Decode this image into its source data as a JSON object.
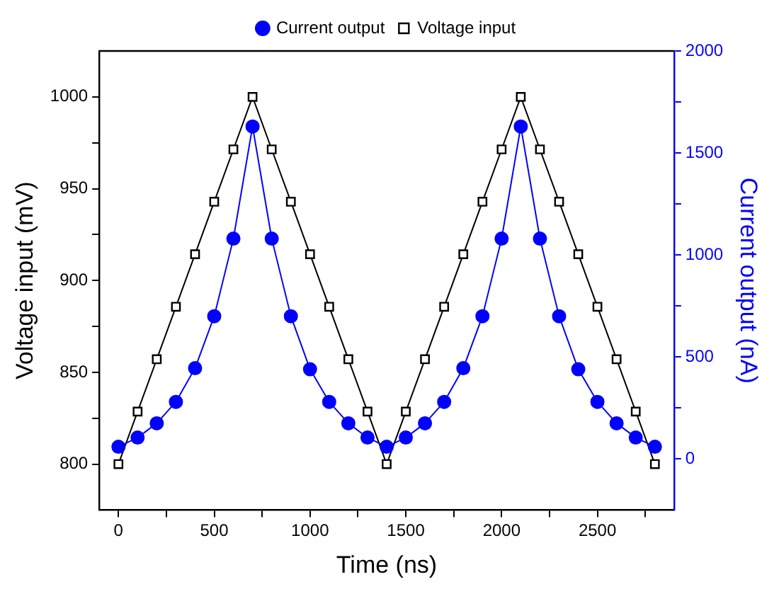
{
  "chart_data": {
    "type": "line",
    "xlabel": "Time (ns)",
    "ylabel": "Voltage input (mV)",
    "y2label": "Current output (nA)",
    "x": [
      0,
      100,
      200,
      300,
      400,
      500,
      600,
      700,
      800,
      900,
      1000,
      1100,
      1200,
      1300,
      1400,
      1500,
      1600,
      1700,
      1800,
      1900,
      2000,
      2100,
      2200,
      2300,
      2400,
      2500,
      2600,
      2700,
      2800
    ],
    "series": [
      {
        "name": "Current output",
        "color": "#0000ff",
        "axis": "y2",
        "marker": "circle",
        "values": [
          60,
          105,
          175,
          280,
          445,
          700,
          1080,
          1630,
          1080,
          700,
          440,
          280,
          175,
          105,
          60,
          105,
          175,
          280,
          445,
          700,
          1080,
          1630,
          1080,
          700,
          440,
          280,
          175,
          105,
          60
        ]
      },
      {
        "name": "Voltage input",
        "color": "#000000",
        "axis": "y",
        "marker": "square",
        "values": [
          800,
          828.6,
          857.1,
          885.7,
          914.3,
          942.9,
          971.4,
          1000,
          971.4,
          942.9,
          914.3,
          885.7,
          857.1,
          828.6,
          800,
          828.6,
          857.1,
          885.7,
          914.3,
          942.9,
          971.4,
          1000,
          971.4,
          942.9,
          914.3,
          885.7,
          857.1,
          828.6,
          800
        ]
      }
    ],
    "xlim": [
      -100,
      2900
    ],
    "xticks": [
      0,
      {
        "value": 250,
        "label": null
      },
      500,
      {
        "value": 750,
        "label": null
      },
      1000,
      {
        "value": 1250,
        "label": null
      },
      1500,
      {
        "value": 1750,
        "label": null
      },
      2000,
      {
        "value": 2250,
        "label": null
      },
      2500,
      {
        "value": 2750,
        "label": null
      }
    ],
    "ylim": [
      775,
      1025
    ],
    "yticks": [
      800,
      {
        "value": 825,
        "label": null
      },
      850,
      {
        "value": 875,
        "label": null
      },
      900,
      {
        "value": 925,
        "label": null
      },
      950,
      {
        "value": 975,
        "label": null
      },
      1000
    ],
    "y2lim": [
      -250,
      2000
    ],
    "y2ticks": [
      0,
      {
        "value": 250,
        "label": null
      },
      500,
      {
        "value": 750,
        "label": null
      },
      1000,
      {
        "value": 1250,
        "label": null
      },
      1500,
      {
        "value": 1750,
        "label": null
      },
      2000
    ],
    "grid": false,
    "legend": "top",
    "line_style": "solid"
  }
}
